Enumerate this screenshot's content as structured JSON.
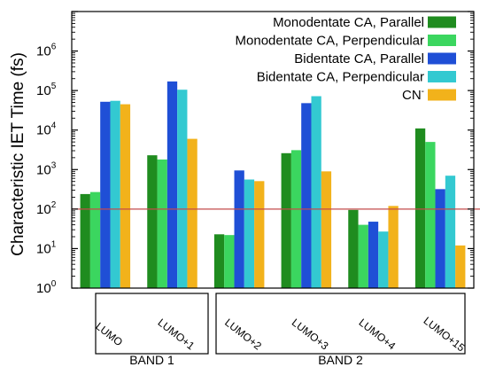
{
  "chart_data": {
    "type": "bar",
    "yscale": "log",
    "ylim": [
      1,
      10000000
    ],
    "yticks": [
      {
        "base": "10",
        "exp": "0"
      },
      {
        "base": "10",
        "exp": "1"
      },
      {
        "base": "10",
        "exp": "2"
      },
      {
        "base": "10",
        "exp": "3"
      },
      {
        "base": "10",
        "exp": "4"
      },
      {
        "base": "10",
        "exp": "5"
      },
      {
        "base": "10",
        "exp": "6"
      }
    ],
    "ylabel": "Characteristic IET Time (fs)",
    "categories": [
      "LUMO",
      "LUMO+1",
      "LUMO+2",
      "LUMO+3",
      "LUMO+4",
      "LUMO+15"
    ],
    "groups": [
      {
        "label": "BAND 1",
        "categories": [
          "LUMO",
          "LUMO+1"
        ]
      },
      {
        "label": "BAND 2",
        "categories": [
          "LUMO+2",
          "LUMO+3",
          "LUMO+4",
          "LUMO+15"
        ]
      }
    ],
    "series": [
      {
        "name": "Monodentate CA, Parallel",
        "color": "#1f8c1f",
        "values": [
          240,
          2300,
          23,
          2600,
          95,
          11000
        ]
      },
      {
        "name": "Monodentate CA, Perpendicular",
        "color": "#3bd65f",
        "values": [
          270,
          1800,
          22,
          3100,
          40,
          5000
        ]
      },
      {
        "name": "Bidentate CA, Parallel",
        "color": "#1f4fd6",
        "values": [
          52000,
          170000,
          950,
          48000,
          48,
          320
        ]
      },
      {
        "name": "Bidentate CA, Perpendicular",
        "color": "#33c9d1",
        "values": [
          55000,
          105000,
          560,
          72000,
          27,
          700
        ]
      },
      {
        "name": "CN",
        "name_sup": "-",
        "color": "#f2b21b",
        "values": [
          45000,
          6000,
          510,
          900,
          120,
          12
        ]
      }
    ],
    "reference_line": {
      "value": 100,
      "color": "#c44b4b"
    },
    "legend": "top-right",
    "grid": false
  }
}
